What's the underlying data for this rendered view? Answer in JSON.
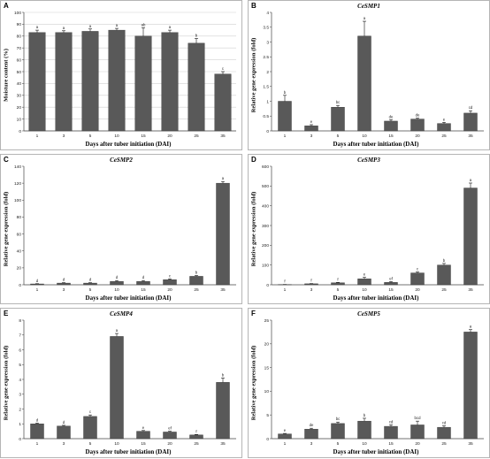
{
  "chart_data": [
    {
      "id": "A",
      "panel_label": "A",
      "title": "",
      "type": "bar",
      "categories": [
        "1",
        "3",
        "5",
        "10",
        "15",
        "20",
        "25",
        "35"
      ],
      "values": [
        83,
        83,
        84,
        85,
        80,
        83,
        74,
        48
      ],
      "errors": [
        2,
        1.5,
        2,
        1.5,
        7,
        2,
        4,
        2
      ],
      "sig_letters": [
        "a",
        "a",
        "a",
        "a",
        "ab",
        "a",
        "b",
        "c"
      ],
      "xlabel": "Days after tuber initiation (DAI)",
      "ylabel": "Moisture content (%)",
      "ylim": [
        0,
        100
      ],
      "yticks": [
        "0",
        "10",
        "20",
        "30",
        "40",
        "50",
        "60",
        "70",
        "80",
        "90",
        "100"
      ],
      "grid": true,
      "bar_color": "#595959"
    },
    {
      "id": "B",
      "panel_label": "B",
      "title": "CeSMP1",
      "type": "bar",
      "categories": [
        "1",
        "3",
        "5",
        "10",
        "15",
        "20",
        "25",
        "35"
      ],
      "values": [
        1.0,
        0.17,
        0.8,
        3.2,
        0.33,
        0.4,
        0.25,
        0.6
      ],
      "errors": [
        0.2,
        0.04,
        0.06,
        0.5,
        0.05,
        0.03,
        0.04,
        0.08
      ],
      "sig_letters": [
        "b",
        "e",
        "bc",
        "a",
        "de",
        "de",
        "e",
        "cd"
      ],
      "xlabel": "Days after tuber initiation (DAI)",
      "ylabel": "Relative gene expression (fold)",
      "ylim": [
        0,
        4
      ],
      "yticks": [
        "0",
        "0.5",
        "1",
        "1.5",
        "2",
        "2.5",
        "3",
        "3.5",
        "4"
      ],
      "grid": false,
      "bar_color": "#595959"
    },
    {
      "id": "C",
      "panel_label": "C",
      "title": "CeSMP2",
      "type": "bar",
      "categories": [
        "1",
        "3",
        "5",
        "10",
        "15",
        "20",
        "25",
        "35"
      ],
      "values": [
        1,
        2,
        2,
        4,
        4,
        6,
        10,
        120
      ],
      "errors": [
        0.3,
        0.5,
        0.5,
        1,
        1,
        1,
        1,
        2
      ],
      "sig_letters": [
        "d",
        "d",
        "d",
        "d",
        "d",
        "c",
        "b",
        "a"
      ],
      "xlabel": "Days after tuber initiation (DAI)",
      "ylabel": "Relative gene expression (fold)",
      "ylim": [
        0,
        140
      ],
      "yticks": [
        "0",
        "20",
        "40",
        "60",
        "80",
        "100",
        "120",
        "140"
      ],
      "grid": false,
      "bar_color": "#595959"
    },
    {
      "id": "D",
      "panel_label": "D",
      "title": "CeSMP3",
      "type": "bar",
      "categories": [
        "1",
        "3",
        "5",
        "10",
        "15",
        "20",
        "25",
        "35"
      ],
      "values": [
        1,
        5,
        10,
        30,
        12,
        60,
        100,
        490
      ],
      "errors": [
        0.5,
        1,
        2,
        8,
        4,
        5,
        8,
        25
      ],
      "sig_letters": [
        "f",
        "f",
        "f",
        "e",
        "ef",
        "c",
        "b",
        "a"
      ],
      "xlabel": "Days after tuber initiation (DAI)",
      "ylabel": "Relative gene expression (fold)",
      "ylim": [
        0,
        600
      ],
      "yticks": [
        "0",
        "100",
        "200",
        "300",
        "400",
        "500",
        "600"
      ],
      "grid": false,
      "bar_color": "#595959"
    },
    {
      "id": "E",
      "panel_label": "E",
      "title": "CeSMP4",
      "type": "bar",
      "categories": [
        "1",
        "3",
        "5",
        "10",
        "15",
        "20",
        "25",
        "35"
      ],
      "values": [
        1.0,
        0.85,
        1.5,
        6.9,
        0.5,
        0.45,
        0.25,
        3.8
      ],
      "errors": [
        0.05,
        0.05,
        0.1,
        0.2,
        0.05,
        0.05,
        0.03,
        0.3
      ],
      "sig_letters": [
        "d",
        "d",
        "c",
        "a",
        "e",
        "ef",
        "f",
        "b"
      ],
      "xlabel": "Days after tuber initiation (DAI)",
      "ylabel": "Relative gene expression (fold)",
      "ylim": [
        0,
        8
      ],
      "yticks": [
        "0",
        "1",
        "2",
        "3",
        "4",
        "5",
        "6",
        "7",
        "8"
      ],
      "grid": false,
      "bar_color": "#595959"
    },
    {
      "id": "F",
      "panel_label": "F",
      "title": "CeSMP5",
      "type": "bar",
      "categories": [
        "1",
        "3",
        "5",
        "10",
        "15",
        "20",
        "25",
        "35"
      ],
      "values": [
        1.0,
        2.0,
        3.2,
        3.7,
        2.6,
        2.9,
        2.4,
        22.5
      ],
      "errors": [
        0.1,
        0.2,
        0.3,
        0.6,
        0.3,
        0.8,
        0.3,
        0.5
      ],
      "sig_letters": [
        "e",
        "de",
        "bc",
        "b",
        "cd",
        "bcd",
        "cd",
        "a"
      ],
      "xlabel": "Days after tuber initiation (DAI)",
      "ylabel": "Relative gene expression (fold)",
      "ylim": [
        0,
        25
      ],
      "yticks": [
        "0",
        "5",
        "10",
        "15",
        "20",
        "25"
      ],
      "grid": false,
      "bar_color": "#595959"
    }
  ]
}
